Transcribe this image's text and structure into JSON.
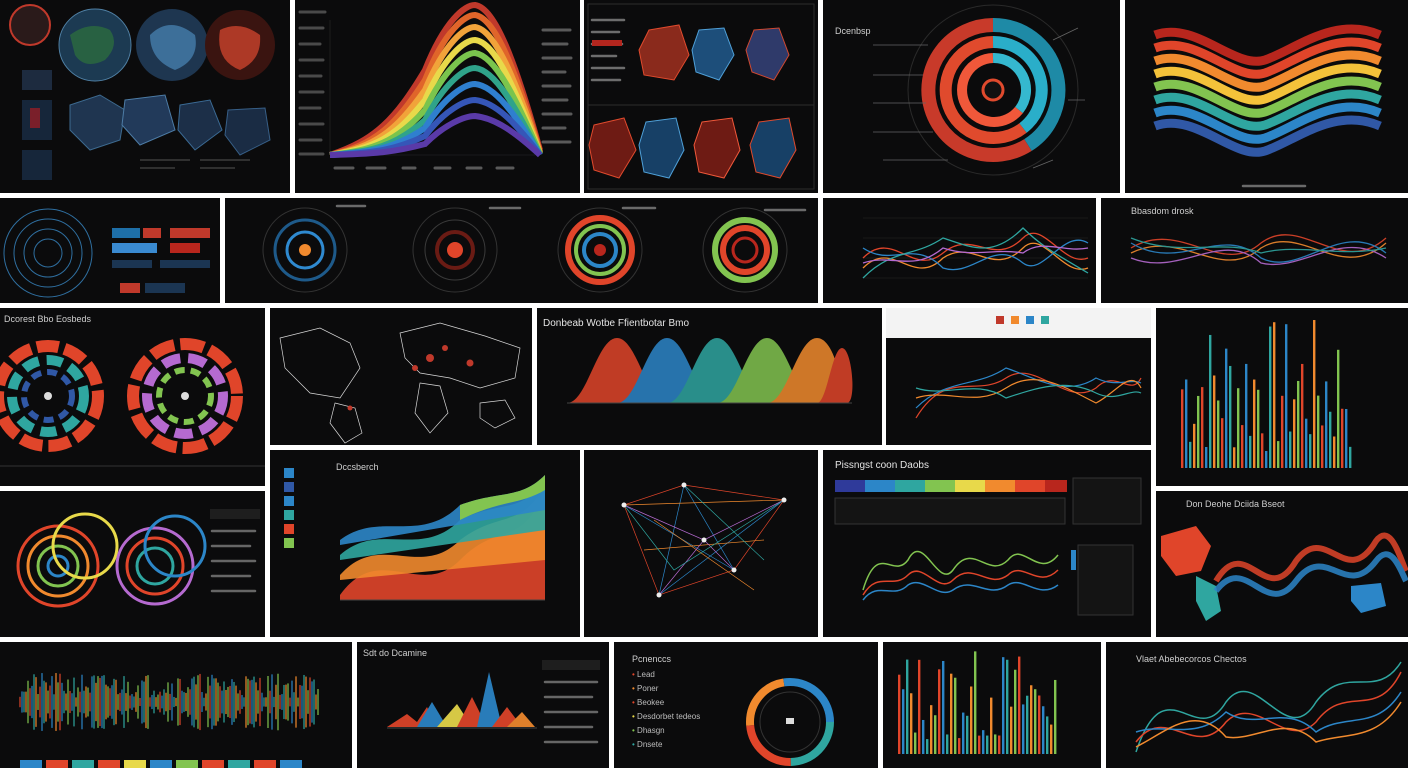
{
  "collage": {
    "tiles": [
      {
        "id": "t01",
        "kind": "maps",
        "title": "",
        "labels": []
      },
      {
        "id": "t02",
        "kind": "stream",
        "title": "",
        "labels": []
      },
      {
        "id": "t03",
        "kind": "network-grid",
        "title": "",
        "labels": []
      },
      {
        "id": "t04",
        "kind": "sunburst",
        "title": "Dcenbsp",
        "labels": []
      },
      {
        "id": "t05",
        "kind": "wave",
        "title": "",
        "labels": []
      },
      {
        "id": "t06",
        "kind": "rings-panel",
        "title": "",
        "labels": []
      },
      {
        "id": "t07",
        "kind": "rings-row",
        "title": "",
        "labels": []
      },
      {
        "id": "t08",
        "kind": "lines",
        "title": "",
        "labels": []
      },
      {
        "id": "t09",
        "kind": "ribbons",
        "title": "Bbasdom drosk",
        "labels": []
      },
      {
        "id": "t10",
        "kind": "radials",
        "title": "Dcorest Bbo Eosbeds",
        "labels": []
      },
      {
        "id": "t11",
        "kind": "world-map",
        "title": "",
        "labels": []
      },
      {
        "id": "t12",
        "kind": "bells",
        "title": "Donbeab Wotbe Ffientbotar Bmo",
        "labels": []
      },
      {
        "id": "t13",
        "kind": "white-lines",
        "title": "",
        "labels": []
      },
      {
        "id": "t14",
        "kind": "bars",
        "title": "",
        "labels": []
      },
      {
        "id": "t15",
        "kind": "spheres",
        "title": "",
        "labels": []
      },
      {
        "id": "t16",
        "kind": "stacked-area",
        "title": "Dccsberch",
        "labels": []
      },
      {
        "id": "t17",
        "kind": "network",
        "title": "",
        "labels": []
      },
      {
        "id": "t18",
        "kind": "dashboard",
        "title": "Pissngst coon Daobs",
        "labels": []
      },
      {
        "id": "t19",
        "kind": "map-wave",
        "title": "Don Deohe Dciida Bseot",
        "labels": []
      },
      {
        "id": "t20",
        "kind": "spectrum",
        "title": "",
        "labels": []
      },
      {
        "id": "t21",
        "kind": "peaks",
        "title": "Sdt do Dcamine",
        "labels": []
      },
      {
        "id": "t22",
        "kind": "gauge",
        "title": "Pcnenccs",
        "labels": [
          "Lead",
          "Poner",
          "Beokee",
          "Desdorbet tedeos",
          "Dhasgn",
          "Dnsete"
        ]
      },
      {
        "id": "t23",
        "kind": "bars",
        "title": "",
        "labels": []
      },
      {
        "id": "t24",
        "kind": "curves",
        "title": "Vlaet Abebecorcos Chectos",
        "labels": []
      }
    ]
  }
}
